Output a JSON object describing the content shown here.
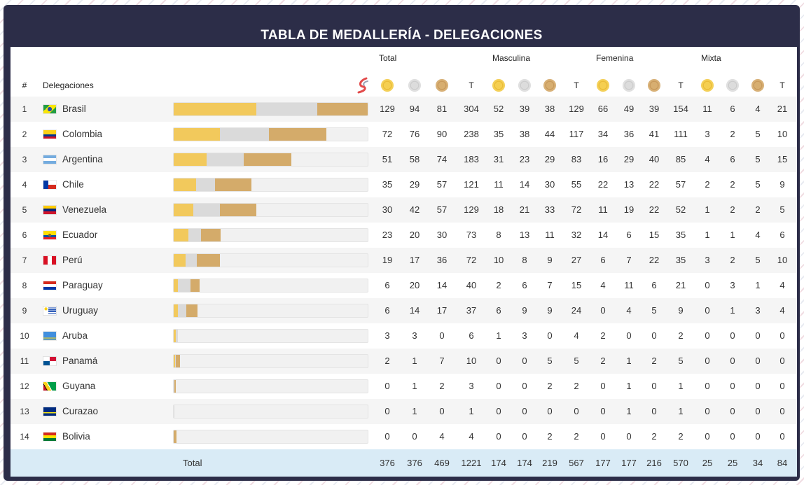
{
  "title": "TABLA DE MEDALLERÍA - DELEGACIONES",
  "groups": [
    "Total",
    "Masculina",
    "Femenina",
    "Mixta"
  ],
  "headers": {
    "rank": "#",
    "delegation": "Delegaciones",
    "total_col": "T"
  },
  "icons": {
    "sport_logo": "sport-logo-icon",
    "gold": "gold-medal-icon",
    "silver": "silver-medal-icon",
    "bronze": "bronze-medal-icon"
  },
  "colors": {
    "header_bg": "#2c2d48",
    "gold": "#f2c95c",
    "silver": "#dadada",
    "bronze": "#d4ab6a",
    "total_row_bg": "#d9ebf6"
  },
  "bar_max_total": 304,
  "rows": [
    {
      "rank": "1",
      "name": "Brasil",
      "flag": "brazil-flag-icon",
      "vals": [
        "129",
        "94",
        "81",
        "304",
        "52",
        "39",
        "38",
        "129",
        "66",
        "49",
        "39",
        "154",
        "11",
        "6",
        "4",
        "21"
      ]
    },
    {
      "rank": "2",
      "name": "Colombia",
      "flag": "colombia-flag-icon",
      "vals": [
        "72",
        "76",
        "90",
        "238",
        "35",
        "38",
        "44",
        "117",
        "34",
        "36",
        "41",
        "111",
        "3",
        "2",
        "5",
        "10"
      ]
    },
    {
      "rank": "3",
      "name": "Argentina",
      "flag": "argentina-flag-icon",
      "vals": [
        "51",
        "58",
        "74",
        "183",
        "31",
        "23",
        "29",
        "83",
        "16",
        "29",
        "40",
        "85",
        "4",
        "6",
        "5",
        "15"
      ]
    },
    {
      "rank": "4",
      "name": "Chile",
      "flag": "chile-flag-icon",
      "vals": [
        "35",
        "29",
        "57",
        "121",
        "11",
        "14",
        "30",
        "55",
        "22",
        "13",
        "22",
        "57",
        "2",
        "2",
        "5",
        "9"
      ]
    },
    {
      "rank": "5",
      "name": "Venezuela",
      "flag": "venezuela-flag-icon",
      "vals": [
        "30",
        "42",
        "57",
        "129",
        "18",
        "21",
        "33",
        "72",
        "11",
        "19",
        "22",
        "52",
        "1",
        "2",
        "2",
        "5"
      ]
    },
    {
      "rank": "6",
      "name": "Ecuador",
      "flag": "ecuador-flag-icon",
      "vals": [
        "23",
        "20",
        "30",
        "73",
        "8",
        "13",
        "11",
        "32",
        "14",
        "6",
        "15",
        "35",
        "1",
        "1",
        "4",
        "6"
      ]
    },
    {
      "rank": "7",
      "name": "Perú",
      "flag": "peru-flag-icon",
      "vals": [
        "19",
        "17",
        "36",
        "72",
        "10",
        "8",
        "9",
        "27",
        "6",
        "7",
        "22",
        "35",
        "3",
        "2",
        "5",
        "10"
      ]
    },
    {
      "rank": "8",
      "name": "Paraguay",
      "flag": "paraguay-flag-icon",
      "vals": [
        "6",
        "20",
        "14",
        "40",
        "2",
        "6",
        "7",
        "15",
        "4",
        "11",
        "6",
        "21",
        "0",
        "3",
        "1",
        "4"
      ]
    },
    {
      "rank": "9",
      "name": "Uruguay",
      "flag": "uruguay-flag-icon",
      "vals": [
        "6",
        "14",
        "17",
        "37",
        "6",
        "9",
        "9",
        "24",
        "0",
        "4",
        "5",
        "9",
        "0",
        "1",
        "3",
        "4"
      ]
    },
    {
      "rank": "10",
      "name": "Aruba",
      "flag": "aruba-flag-icon",
      "vals": [
        "3",
        "3",
        "0",
        "6",
        "1",
        "3",
        "0",
        "4",
        "2",
        "0",
        "0",
        "2",
        "0",
        "0",
        "0",
        "0"
      ]
    },
    {
      "rank": "11",
      "name": "Panamá",
      "flag": "panama-flag-icon",
      "vals": [
        "2",
        "1",
        "7",
        "10",
        "0",
        "0",
        "5",
        "5",
        "2",
        "1",
        "2",
        "5",
        "0",
        "0",
        "0",
        "0"
      ]
    },
    {
      "rank": "12",
      "name": "Guyana",
      "flag": "guyana-flag-icon",
      "vals": [
        "0",
        "1",
        "2",
        "3",
        "0",
        "0",
        "2",
        "2",
        "0",
        "1",
        "0",
        "1",
        "0",
        "0",
        "0",
        "0"
      ]
    },
    {
      "rank": "13",
      "name": "Curazao",
      "flag": "curacao-flag-icon",
      "vals": [
        "0",
        "1",
        "0",
        "1",
        "0",
        "0",
        "0",
        "0",
        "0",
        "1",
        "0",
        "1",
        "0",
        "0",
        "0",
        "0"
      ]
    },
    {
      "rank": "14",
      "name": "Bolivia",
      "flag": "bolivia-flag-icon",
      "vals": [
        "0",
        "0",
        "4",
        "4",
        "0",
        "0",
        "2",
        "2",
        "0",
        "0",
        "2",
        "2",
        "0",
        "0",
        "0",
        "0"
      ]
    }
  ],
  "total": {
    "label": "Total",
    "vals": [
      "376",
      "376",
      "469",
      "1221",
      "174",
      "174",
      "219",
      "567",
      "177",
      "177",
      "216",
      "570",
      "25",
      "25",
      "34",
      "84"
    ]
  }
}
